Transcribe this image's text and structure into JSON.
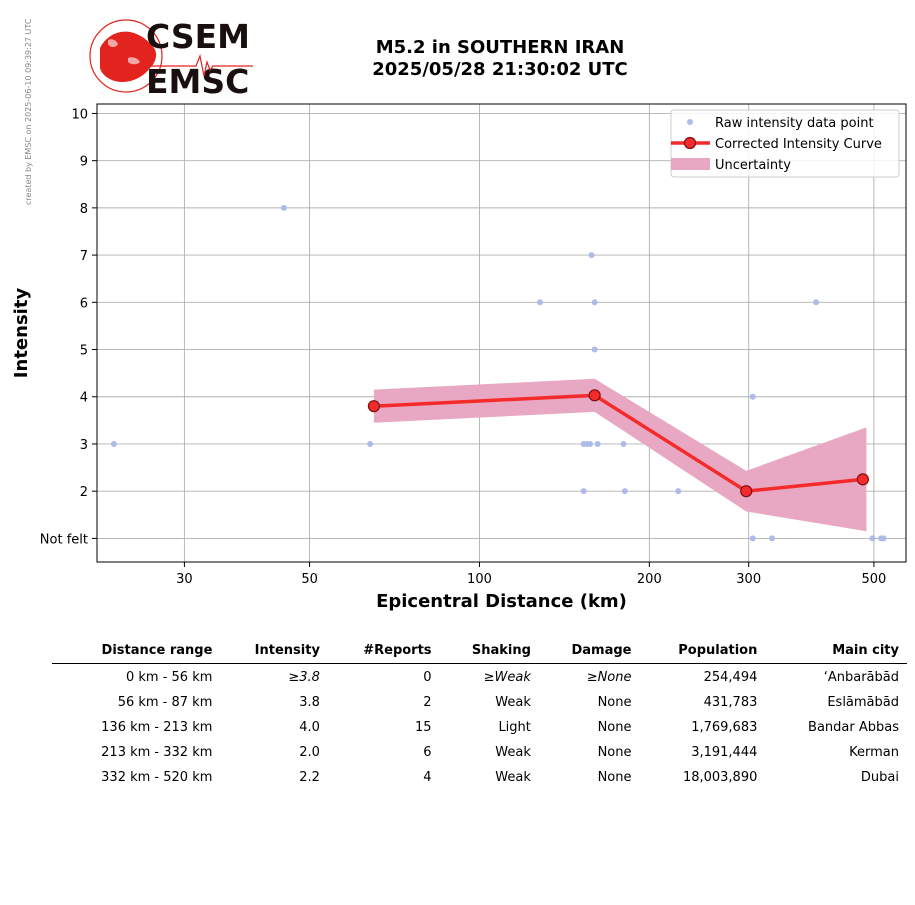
{
  "side_note": "created by EMSC on 2025-06-10 09:39:27 UTC",
  "logo": {
    "line1": "CSEM",
    "line2": "EMSC",
    "colors": {
      "red": "#e3231e",
      "dark": "#1a0f0f"
    }
  },
  "title": {
    "line1": "M5.2 in SOUTHERN IRAN",
    "line2": "2025/05/28 21:30:02 UTC"
  },
  "chart_data": {
    "type": "scatter",
    "xlabel": "Epicentral Distance (km)",
    "ylabel": "Intensity",
    "x_scale": "log",
    "xlim": [
      21,
      570
    ],
    "ylim": [
      0.5,
      10.2
    ],
    "grid": true,
    "x_ticks": [
      30,
      50,
      100,
      200,
      300,
      500
    ],
    "y_ticks": [
      1,
      2,
      3,
      4,
      5,
      6,
      7,
      8,
      9,
      10
    ],
    "y_tick_labels": [
      "Not felt",
      "2",
      "3",
      "4",
      "5",
      "6",
      "7",
      "8",
      "9",
      "10"
    ],
    "legend_position": "top-right",
    "legend": [
      "Raw intensity data point",
      "Corrected Intensity Curve",
      "Uncertainty"
    ],
    "colors": {
      "raw": "#aebbe8",
      "curve": "#f52a2a",
      "marker_edge": "#7a1010",
      "uncertainty": "#e8a7c2",
      "grid": "#b0b0b0"
    },
    "raw_points": [
      {
        "x": 22.5,
        "y": 3
      },
      {
        "x": 45,
        "y": 8
      },
      {
        "x": 64,
        "y": 3
      },
      {
        "x": 128,
        "y": 6
      },
      {
        "x": 153,
        "y": 2
      },
      {
        "x": 153,
        "y": 3
      },
      {
        "x": 155,
        "y": 3
      },
      {
        "x": 157,
        "y": 3
      },
      {
        "x": 158,
        "y": 7
      },
      {
        "x": 160,
        "y": 6
      },
      {
        "x": 160,
        "y": 5
      },
      {
        "x": 162,
        "y": 3
      },
      {
        "x": 180,
        "y": 3
      },
      {
        "x": 181,
        "y": 2
      },
      {
        "x": 225,
        "y": 2
      },
      {
        "x": 305,
        "y": 4
      },
      {
        "x": 305,
        "y": 1
      },
      {
        "x": 330,
        "y": 1
      },
      {
        "x": 395,
        "y": 6
      },
      {
        "x": 497,
        "y": 1
      },
      {
        "x": 515,
        "y": 1
      },
      {
        "x": 520,
        "y": 1
      }
    ],
    "curve": [
      {
        "x": 65,
        "y": 3.8
      },
      {
        "x": 160,
        "y": 4.03
      },
      {
        "x": 297,
        "y": 2.0
      },
      {
        "x": 478,
        "y": 2.25
      }
    ],
    "uncertainty_upper": [
      {
        "x": 65,
        "y": 4.15
      },
      {
        "x": 160,
        "y": 4.38
      },
      {
        "x": 297,
        "y": 2.43
      },
      {
        "x": 485,
        "y": 3.35
      }
    ],
    "uncertainty_lower": [
      {
        "x": 65,
        "y": 3.45
      },
      {
        "x": 160,
        "y": 3.68
      },
      {
        "x": 297,
        "y": 1.57
      },
      {
        "x": 485,
        "y": 1.15
      }
    ]
  },
  "table": {
    "headers": [
      "Distance range",
      "Intensity",
      "#Reports",
      "Shaking",
      "Damage",
      "Population",
      "Main city"
    ],
    "rows": [
      [
        "0 km -   56 km",
        "≥3.8",
        "0",
        "≥Weak",
        "≥None",
        "254,494",
        "‘Anbarābād"
      ],
      [
        "56 km -   87 km",
        "3.8",
        "2",
        "Weak",
        "None",
        "431,783",
        "Eslāmābād"
      ],
      [
        "136 km -  213 km",
        "4.0",
        "15",
        "Light",
        "None",
        "1,769,683",
        "Bandar Abbas"
      ],
      [
        "213 km -  332 km",
        "2.0",
        "6",
        "Weak",
        "None",
        "3,191,444",
        "Kerman"
      ],
      [
        "332 km -  520 km",
        "2.2",
        "4",
        "Weak",
        "None",
        "18,003,890",
        "Dubai"
      ]
    ]
  }
}
